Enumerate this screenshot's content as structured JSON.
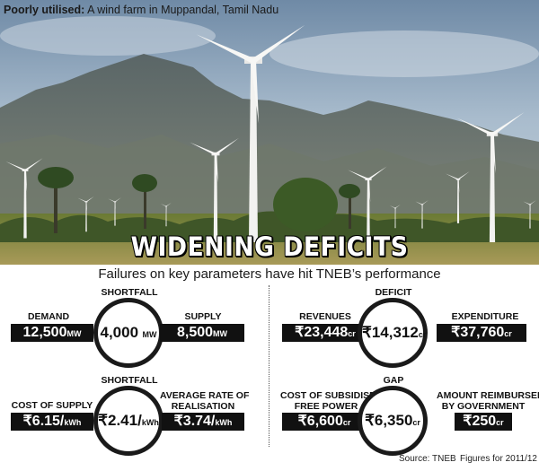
{
  "caption": {
    "bold": "Poorly utilised:",
    "text": "A wind farm in Muppandal, Tamil Nadu"
  },
  "headline": "WIDENING DEFICITS",
  "subtitle": "Failures on key parameters have hit TNEB’s performance",
  "panels": {
    "shortfall": {
      "title": "SHORTFALL",
      "center": {
        "value": "4,000",
        "unit": "MW"
      },
      "left": {
        "label": "DEMAND",
        "value": "12,500",
        "unit": "MW"
      },
      "right": {
        "label": "SUPPLY",
        "value": "8,500",
        "unit": "MW"
      }
    },
    "deficit": {
      "title": "DEFICIT",
      "center": {
        "value": "₹14,312",
        "unit": "cr"
      },
      "left": {
        "label": "REVENUES",
        "value": "₹23,448",
        "unit": "cr"
      },
      "right": {
        "label": "EXPENDITURE",
        "value": "₹37,760",
        "unit": "cr"
      }
    },
    "shortfall_rate": {
      "title": "SHORTFALL",
      "center": {
        "value": "₹2.41/",
        "unit": "kWh"
      },
      "left": {
        "label": "COST OF SUPPLY",
        "value": "₹6.15/",
        "unit": "kWh"
      },
      "right": {
        "label_line1": "AVERAGE RATE OF",
        "label_line2": "REALISATION",
        "value": "₹3.74/",
        "unit": "kWh"
      }
    },
    "gap": {
      "title": "GAP",
      "center": {
        "value": "₹6,350",
        "unit": "cr"
      },
      "left": {
        "label_line1": "COST OF SUBSIDISED/",
        "label_line2": "FREE POWER",
        "value": "₹6,600",
        "unit": "cr"
      },
      "right": {
        "label_line1": "AMOUNT REIMBURSED",
        "label_line2": "BY GOVERNMENT",
        "value": "₹250",
        "unit": "cr"
      }
    }
  },
  "source": "Source: TNEB",
  "footnote": "Figures for 2011/12",
  "colors": {
    "box_bg": "#111111",
    "sky": "#9fb3c8",
    "mountain": "#5d6a6a",
    "grass": "#7a8a3a"
  }
}
